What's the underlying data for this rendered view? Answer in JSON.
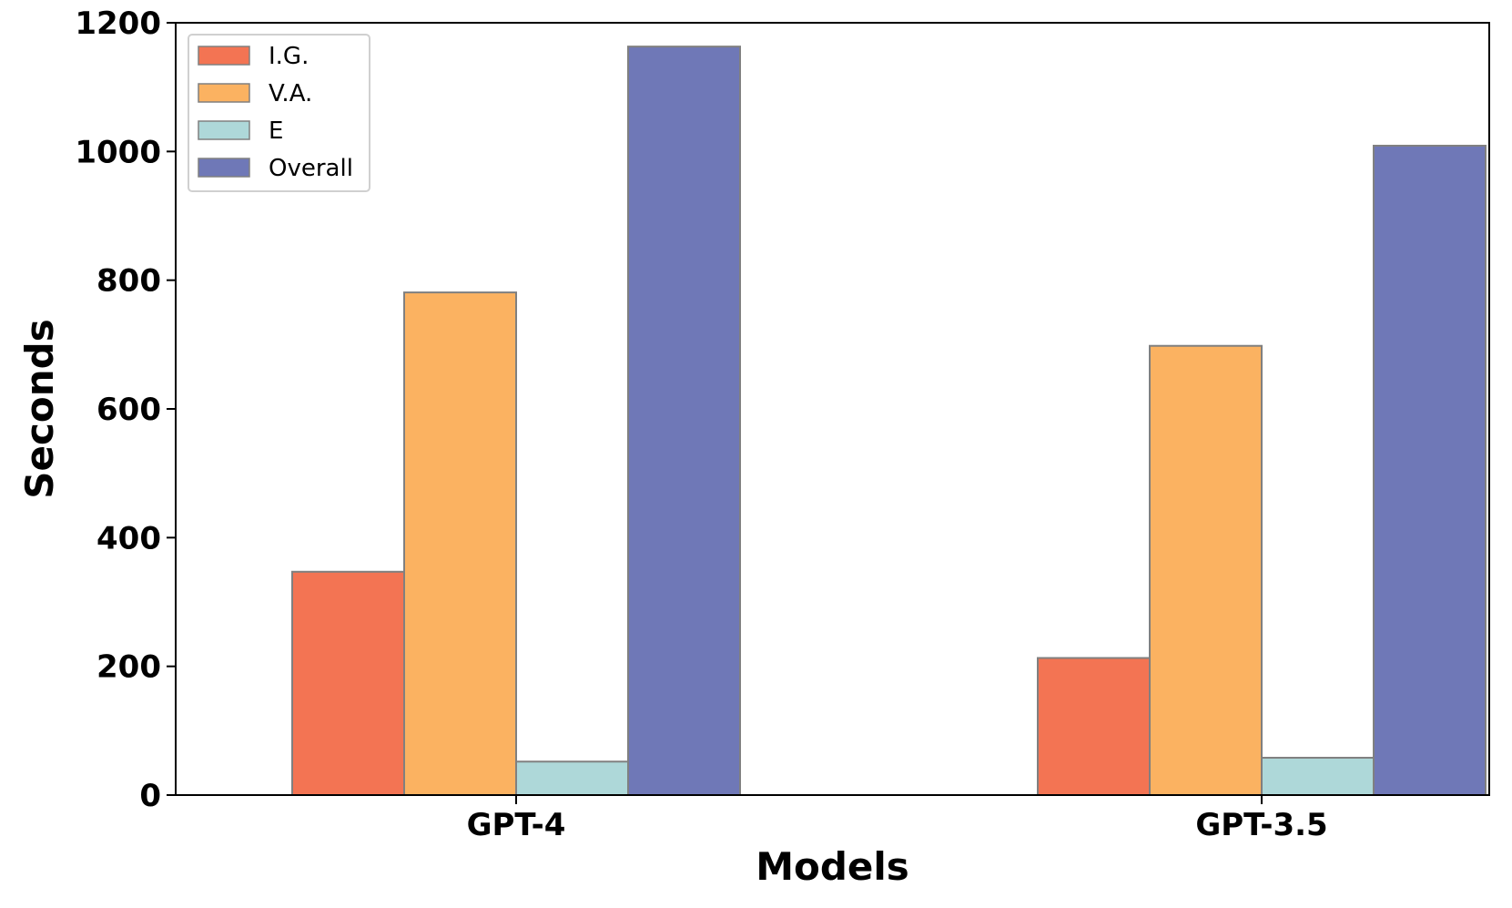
{
  "chart_data": {
    "type": "bar",
    "title": "",
    "xlabel": "Models",
    "ylabel": "Seconds",
    "categories": [
      "GPT-4",
      "GPT-3.5"
    ],
    "ylim": [
      0,
      1200
    ],
    "yticks": [
      0,
      200,
      400,
      600,
      800,
      1000,
      1200
    ],
    "grid": false,
    "legend_position": "top-left",
    "series": [
      {
        "name": "I.G.",
        "color": "#f37453",
        "values": [
          347,
          213
        ]
      },
      {
        "name": "V.A.",
        "color": "#fbb261",
        "values": [
          781,
          698
        ]
      },
      {
        "name": "E",
        "color": "#aed8d9",
        "values": [
          52,
          58
        ]
      },
      {
        "name": "Overall",
        "color": "#6f78b7",
        "values": [
          1163,
          1009
        ]
      }
    ],
    "bar_edge_color": "#808080"
  }
}
